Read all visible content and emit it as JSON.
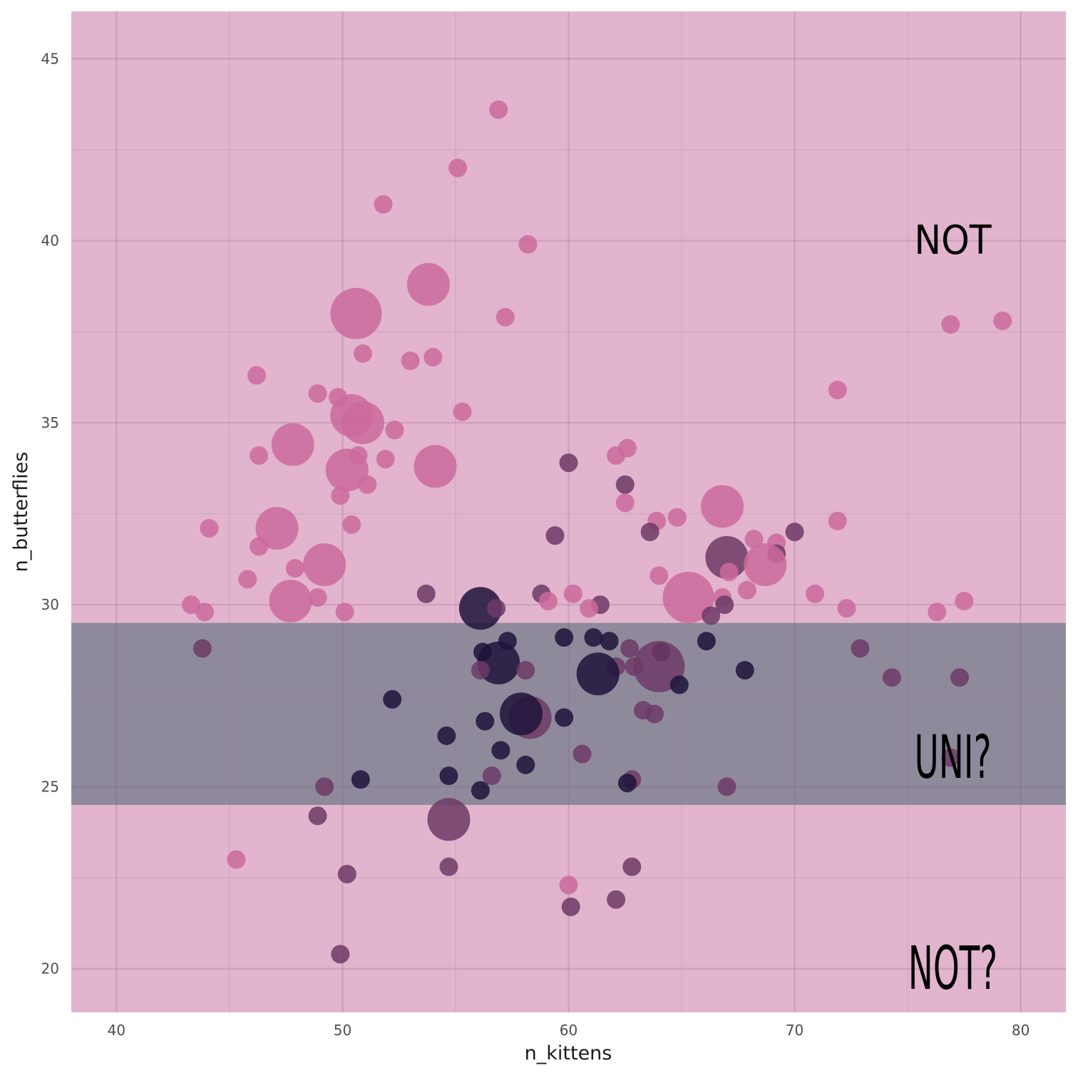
{
  "chart_data": {
    "type": "scatter",
    "title": "",
    "xlabel": "n_kittens",
    "ylabel": "n_butterflies",
    "xlim": [
      38,
      82
    ],
    "ylim": [
      18.8,
      46.3
    ],
    "x_ticks": [
      "40",
      "50",
      "60",
      "70",
      "80"
    ],
    "y_ticks": [
      "20",
      "25",
      "30",
      "35",
      "40",
      "45"
    ],
    "grid": true,
    "legend": "none",
    "bands": [
      {
        "name": "outer",
        "ymin": 18.8,
        "ymax": 46.3,
        "color": "#e2b4cd"
      },
      {
        "name": "middle",
        "ymin": 24.5,
        "ymax": 29.5,
        "color": "#8f8a9b"
      }
    ],
    "annotations": [
      {
        "text": "NOT",
        "x": 77,
        "y": 40,
        "style": "bold"
      },
      {
        "text": "UNI?",
        "x": 77,
        "y": 25.8,
        "style": "hand"
      },
      {
        "text": "NOT?",
        "x": 77,
        "y": 20,
        "style": "hand"
      }
    ],
    "colors": {
      "pink": "#cb6a9c",
      "purple": "#6d3a66",
      "dark": "#1e1339"
    },
    "points": [
      {
        "x": 56.9,
        "y": 43.6,
        "s": 1,
        "c": "pink"
      },
      {
        "x": 55.1,
        "y": 42.0,
        "s": 1,
        "c": "pink"
      },
      {
        "x": 51.8,
        "y": 41.0,
        "s": 1,
        "c": "pink"
      },
      {
        "x": 58.2,
        "y": 39.9,
        "s": 1,
        "c": "pink"
      },
      {
        "x": 53.8,
        "y": 38.8,
        "s": 3,
        "c": "pink"
      },
      {
        "x": 50.6,
        "y": 38.0,
        "s": 4,
        "c": "pink"
      },
      {
        "x": 57.2,
        "y": 37.9,
        "s": 1,
        "c": "pink"
      },
      {
        "x": 76.9,
        "y": 37.7,
        "s": 1,
        "c": "pink"
      },
      {
        "x": 79.2,
        "y": 37.8,
        "s": 1,
        "c": "pink"
      },
      {
        "x": 50.9,
        "y": 36.9,
        "s": 1,
        "c": "pink"
      },
      {
        "x": 53.0,
        "y": 36.7,
        "s": 1,
        "c": "pink"
      },
      {
        "x": 54.0,
        "y": 36.8,
        "s": 1,
        "c": "pink"
      },
      {
        "x": 46.2,
        "y": 36.3,
        "s": 1,
        "c": "pink"
      },
      {
        "x": 71.9,
        "y": 35.9,
        "s": 1,
        "c": "pink"
      },
      {
        "x": 48.9,
        "y": 35.8,
        "s": 1,
        "c": "pink"
      },
      {
        "x": 49.8,
        "y": 35.7,
        "s": 1,
        "c": "pink"
      },
      {
        "x": 55.3,
        "y": 35.3,
        "s": 1,
        "c": "pink"
      },
      {
        "x": 50.4,
        "y": 35.2,
        "s": 3,
        "c": "pink"
      },
      {
        "x": 50.9,
        "y": 35.0,
        "s": 3,
        "c": "pink"
      },
      {
        "x": 52.3,
        "y": 34.8,
        "s": 1,
        "c": "pink"
      },
      {
        "x": 47.8,
        "y": 34.4,
        "s": 3,
        "c": "pink"
      },
      {
        "x": 62.6,
        "y": 34.3,
        "s": 1,
        "c": "pink"
      },
      {
        "x": 46.3,
        "y": 34.1,
        "s": 1,
        "c": "pink"
      },
      {
        "x": 50.7,
        "y": 34.1,
        "s": 1,
        "c": "pink"
      },
      {
        "x": 62.1,
        "y": 34.1,
        "s": 1,
        "c": "pink"
      },
      {
        "x": 51.9,
        "y": 34.0,
        "s": 1,
        "c": "pink"
      },
      {
        "x": 60.0,
        "y": 33.9,
        "s": 1,
        "c": "purple"
      },
      {
        "x": 54.1,
        "y": 33.8,
        "s": 3,
        "c": "pink"
      },
      {
        "x": 50.2,
        "y": 33.7,
        "s": 3,
        "c": "pink"
      },
      {
        "x": 62.5,
        "y": 33.3,
        "s": 1,
        "c": "purple"
      },
      {
        "x": 51.1,
        "y": 33.3,
        "s": 1,
        "c": "pink"
      },
      {
        "x": 49.9,
        "y": 33.0,
        "s": 1,
        "c": "pink"
      },
      {
        "x": 62.5,
        "y": 32.8,
        "s": 1,
        "c": "pink"
      },
      {
        "x": 66.8,
        "y": 32.7,
        "s": 3,
        "c": "pink"
      },
      {
        "x": 64.8,
        "y": 32.4,
        "s": 1,
        "c": "pink"
      },
      {
        "x": 63.9,
        "y": 32.3,
        "s": 1,
        "c": "pink"
      },
      {
        "x": 71.9,
        "y": 32.3,
        "s": 1,
        "c": "pink"
      },
      {
        "x": 50.4,
        "y": 32.2,
        "s": 1,
        "c": "pink"
      },
      {
        "x": 44.1,
        "y": 32.1,
        "s": 1,
        "c": "pink"
      },
      {
        "x": 47.1,
        "y": 32.1,
        "s": 3,
        "c": "pink"
      },
      {
        "x": 70.0,
        "y": 32.0,
        "s": 1,
        "c": "purple"
      },
      {
        "x": 63.6,
        "y": 32.0,
        "s": 1,
        "c": "purple"
      },
      {
        "x": 59.4,
        "y": 31.9,
        "s": 1,
        "c": "purple"
      },
      {
        "x": 68.2,
        "y": 31.8,
        "s": 1,
        "c": "pink"
      },
      {
        "x": 69.2,
        "y": 31.7,
        "s": 1,
        "c": "pink"
      },
      {
        "x": 46.3,
        "y": 31.6,
        "s": 1,
        "c": "pink"
      },
      {
        "x": 67.0,
        "y": 31.3,
        "s": 3,
        "c": "purple"
      },
      {
        "x": 69.2,
        "y": 31.4,
        "s": 1,
        "c": "purple"
      },
      {
        "x": 49.2,
        "y": 31.1,
        "s": 3,
        "c": "pink"
      },
      {
        "x": 68.7,
        "y": 31.1,
        "s": 3,
        "c": "pink"
      },
      {
        "x": 47.9,
        "y": 31.0,
        "s": 1,
        "c": "pink"
      },
      {
        "x": 67.1,
        "y": 30.9,
        "s": 1,
        "c": "pink"
      },
      {
        "x": 64.0,
        "y": 30.8,
        "s": 1,
        "c": "pink"
      },
      {
        "x": 45.8,
        "y": 30.7,
        "s": 1,
        "c": "pink"
      },
      {
        "x": 67.9,
        "y": 30.4,
        "s": 1,
        "c": "pink"
      },
      {
        "x": 60.2,
        "y": 30.3,
        "s": 1,
        "c": "pink"
      },
      {
        "x": 58.8,
        "y": 30.3,
        "s": 1,
        "c": "purple"
      },
      {
        "x": 53.7,
        "y": 30.3,
        "s": 1,
        "c": "purple"
      },
      {
        "x": 70.9,
        "y": 30.3,
        "s": 1,
        "c": "pink"
      },
      {
        "x": 65.3,
        "y": 30.2,
        "s": 4,
        "c": "pink"
      },
      {
        "x": 48.9,
        "y": 30.2,
        "s": 1,
        "c": "pink"
      },
      {
        "x": 66.8,
        "y": 30.2,
        "s": 1,
        "c": "pink"
      },
      {
        "x": 59.1,
        "y": 30.1,
        "s": 1,
        "c": "pink"
      },
      {
        "x": 47.7,
        "y": 30.1,
        "s": 3,
        "c": "pink"
      },
      {
        "x": 77.5,
        "y": 30.1,
        "s": 1,
        "c": "pink"
      },
      {
        "x": 43.3,
        "y": 30.0,
        "s": 1,
        "c": "pink"
      },
      {
        "x": 61.4,
        "y": 30.0,
        "s": 1,
        "c": "purple"
      },
      {
        "x": 66.9,
        "y": 30.0,
        "s": 1,
        "c": "purple"
      },
      {
        "x": 60.9,
        "y": 29.9,
        "s": 1,
        "c": "pink"
      },
      {
        "x": 72.3,
        "y": 29.9,
        "s": 1,
        "c": "pink"
      },
      {
        "x": 56.1,
        "y": 29.9,
        "s": 3,
        "c": "dark"
      },
      {
        "x": 56.8,
        "y": 29.9,
        "s": 1,
        "c": "purple"
      },
      {
        "x": 76.3,
        "y": 29.8,
        "s": 1,
        "c": "pink"
      },
      {
        "x": 43.9,
        "y": 29.8,
        "s": 1,
        "c": "pink"
      },
      {
        "x": 50.1,
        "y": 29.8,
        "s": 1,
        "c": "pink"
      },
      {
        "x": 66.3,
        "y": 29.7,
        "s": 1,
        "c": "purple"
      },
      {
        "x": 59.8,
        "y": 29.1,
        "s": 1,
        "c": "dark"
      },
      {
        "x": 61.1,
        "y": 29.1,
        "s": 1,
        "c": "dark"
      },
      {
        "x": 57.3,
        "y": 29.0,
        "s": 1,
        "c": "dark"
      },
      {
        "x": 61.8,
        "y": 29.0,
        "s": 1,
        "c": "dark"
      },
      {
        "x": 66.1,
        "y": 29.0,
        "s": 1,
        "c": "dark"
      },
      {
        "x": 43.8,
        "y": 28.8,
        "s": 1,
        "c": "purple"
      },
      {
        "x": 72.9,
        "y": 28.8,
        "s": 1,
        "c": "purple"
      },
      {
        "x": 62.7,
        "y": 28.8,
        "s": 1,
        "c": "purple"
      },
      {
        "x": 56.2,
        "y": 28.7,
        "s": 1,
        "c": "dark"
      },
      {
        "x": 64.1,
        "y": 28.7,
        "s": 1,
        "c": "dark"
      },
      {
        "x": 56.9,
        "y": 28.4,
        "s": 3,
        "c": "dark"
      },
      {
        "x": 62.9,
        "y": 28.3,
        "s": 1,
        "c": "purple"
      },
      {
        "x": 62.1,
        "y": 28.3,
        "s": 1,
        "c": "purple"
      },
      {
        "x": 64.0,
        "y": 28.3,
        "s": 4,
        "c": "purple"
      },
      {
        "x": 56.1,
        "y": 28.2,
        "s": 1,
        "c": "purple"
      },
      {
        "x": 58.1,
        "y": 28.2,
        "s": 1,
        "c": "purple"
      },
      {
        "x": 67.8,
        "y": 28.2,
        "s": 1,
        "c": "dark"
      },
      {
        "x": 61.3,
        "y": 28.1,
        "s": 3,
        "c": "dark"
      },
      {
        "x": 74.3,
        "y": 28.0,
        "s": 1,
        "c": "purple"
      },
      {
        "x": 77.3,
        "y": 28.0,
        "s": 1,
        "c": "purple"
      },
      {
        "x": 64.9,
        "y": 27.8,
        "s": 1,
        "c": "dark"
      },
      {
        "x": 52.2,
        "y": 27.4,
        "s": 1,
        "c": "dark"
      },
      {
        "x": 63.3,
        "y": 27.1,
        "s": 1,
        "c": "purple"
      },
      {
        "x": 63.8,
        "y": 27.0,
        "s": 1,
        "c": "purple"
      },
      {
        "x": 58.3,
        "y": 26.9,
        "s": 3,
        "c": "purple"
      },
      {
        "x": 57.9,
        "y": 27.0,
        "s": 3,
        "c": "dark"
      },
      {
        "x": 59.8,
        "y": 26.9,
        "s": 1,
        "c": "dark"
      },
      {
        "x": 56.3,
        "y": 26.8,
        "s": 1,
        "c": "dark"
      },
      {
        "x": 54.6,
        "y": 26.4,
        "s": 1,
        "c": "dark"
      },
      {
        "x": 57.0,
        "y": 26.0,
        "s": 1,
        "c": "dark"
      },
      {
        "x": 60.6,
        "y": 25.9,
        "s": 1,
        "c": "purple"
      },
      {
        "x": 76.9,
        "y": 25.8,
        "s": 1,
        "c": "purple"
      },
      {
        "x": 58.1,
        "y": 25.6,
        "s": 1,
        "c": "dark"
      },
      {
        "x": 54.7,
        "y": 25.3,
        "s": 1,
        "c": "dark"
      },
      {
        "x": 56.6,
        "y": 25.3,
        "s": 1,
        "c": "purple"
      },
      {
        "x": 50.8,
        "y": 25.2,
        "s": 1,
        "c": "dark"
      },
      {
        "x": 62.8,
        "y": 25.2,
        "s": 1,
        "c": "purple"
      },
      {
        "x": 62.6,
        "y": 25.1,
        "s": 1,
        "c": "dark"
      },
      {
        "x": 49.2,
        "y": 25.0,
        "s": 1,
        "c": "purple"
      },
      {
        "x": 67.0,
        "y": 25.0,
        "s": 1,
        "c": "purple"
      },
      {
        "x": 56.1,
        "y": 24.9,
        "s": 1,
        "c": "dark"
      },
      {
        "x": 48.9,
        "y": 24.2,
        "s": 1,
        "c": "purple"
      },
      {
        "x": 54.7,
        "y": 24.1,
        "s": 3,
        "c": "purple"
      },
      {
        "x": 45.3,
        "y": 23.0,
        "s": 1,
        "c": "pink"
      },
      {
        "x": 54.7,
        "y": 22.8,
        "s": 1,
        "c": "purple"
      },
      {
        "x": 62.8,
        "y": 22.8,
        "s": 1,
        "c": "purple"
      },
      {
        "x": 50.2,
        "y": 22.6,
        "s": 1,
        "c": "purple"
      },
      {
        "x": 60.0,
        "y": 22.3,
        "s": 1,
        "c": "pink"
      },
      {
        "x": 62.1,
        "y": 21.9,
        "s": 1,
        "c": "purple"
      },
      {
        "x": 60.1,
        "y": 21.7,
        "s": 1,
        "c": "purple"
      },
      {
        "x": 49.9,
        "y": 20.4,
        "s": 1,
        "c": "purple"
      }
    ]
  }
}
